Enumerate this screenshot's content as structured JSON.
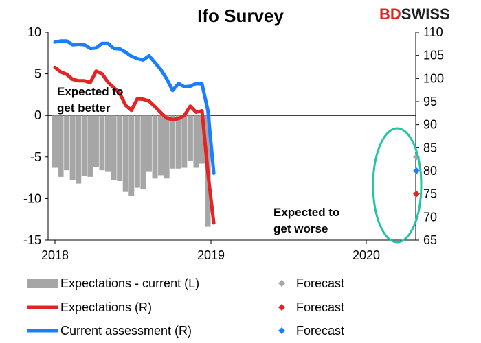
{
  "chart_data": {
    "type": "bar+line",
    "title": "Ifo Survey",
    "logo": {
      "part1": "BD",
      "part2": "SWISS"
    },
    "x_ticks": [
      "2018",
      "2019",
      "2020"
    ],
    "left_axis": {
      "ylim": [
        -15,
        10
      ],
      "ticks": [
        "10",
        "5",
        "0",
        "-5",
        "-10",
        "-15"
      ],
      "tick_values": [
        10,
        5,
        0,
        -5,
        -10,
        -15
      ]
    },
    "right_axis": {
      "ylim": [
        65,
        110
      ],
      "ticks": [
        "110",
        "105",
        "100",
        "95",
        "90",
        "85",
        "80",
        "75",
        "70",
        "65"
      ],
      "tick_values": [
        110,
        105,
        100,
        95,
        90,
        85,
        80,
        75,
        70,
        65
      ]
    },
    "series": [
      {
        "name": "Expectations - current (L)",
        "type": "bar",
        "axis": "left",
        "color": "#a6a6a6",
        "values": [
          -6.3,
          -7.4,
          -6.6,
          -7.8,
          -8.2,
          -7.3,
          -7.4,
          -6.2,
          -6.6,
          -6.8,
          -7.8,
          -7.9,
          -9.2,
          -9.7,
          -8.7,
          -8.9,
          -6.8,
          -7.6,
          -7.2,
          -7.6,
          -6.4,
          -6.4,
          -6.3,
          -5.5,
          -6.3,
          -5.8,
          -13.4
        ]
      },
      {
        "name": "Expectations (R)",
        "type": "line",
        "axis": "right",
        "color": "#e32424",
        "values": [
          102.4,
          101.4,
          100.9,
          99.8,
          99.5,
          99.5,
          99.1,
          101.6,
          101.0,
          99.2,
          98.0,
          96.8,
          94.2,
          93.1,
          95.6,
          95.5,
          95.1,
          93.9,
          92.6,
          91.4,
          91.1,
          91.3,
          92.0,
          94.0,
          92.7,
          93.0,
          79.5,
          68.7
        ]
      },
      {
        "name": "Current assessment (R)",
        "type": "line",
        "axis": "right",
        "color": "#1a7fff",
        "values": [
          107.9,
          108.1,
          108.1,
          107.3,
          107.4,
          107.3,
          106.5,
          106.6,
          107.6,
          107.6,
          106.5,
          106.4,
          105.7,
          104.8,
          104.3,
          104.0,
          104.9,
          103.4,
          101.9,
          99.9,
          97.4,
          98.9,
          98.2,
          98.3,
          98.9,
          98.8,
          93.0,
          79.5
        ]
      }
    ],
    "forecasts": [
      {
        "name": "Forecast",
        "for_series": "Expectations - current (L)",
        "axis": "left",
        "value": -5.0,
        "color": "#a6a6a6"
      },
      {
        "name": "Forecast",
        "for_series": "Expectations (R)",
        "axis": "right",
        "value": 75.0,
        "color": "#e32424"
      },
      {
        "name": "Forecast",
        "for_series": "Current assessment (R)",
        "axis": "right",
        "value": 80.0,
        "color": "#1a7fff"
      }
    ],
    "annotations": [
      {
        "lines": [
          "Expected to",
          "get better"
        ]
      },
      {
        "lines": [
          "Expected to",
          "get worse"
        ]
      }
    ],
    "highlight_color": "#22c4a5",
    "legend": [
      {
        "label": "Expectations - current (L)",
        "type": "bar",
        "color": "#a6a6a6"
      },
      {
        "label": "Forecast",
        "type": "diamond",
        "color": "#a6a6a6"
      },
      {
        "label": "Expectations (R)",
        "type": "line",
        "color": "#e32424"
      },
      {
        "label": "Forecast",
        "type": "diamond",
        "color": "#e32424"
      },
      {
        "label": "Current assessment (R)",
        "type": "line",
        "color": "#1a7fff"
      },
      {
        "label": "Forecast",
        "type": "diamond",
        "color": "#1a7fff"
      }
    ]
  }
}
